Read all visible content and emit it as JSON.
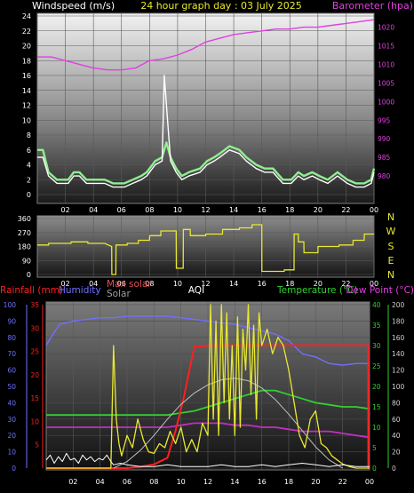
{
  "header": {
    "left_label": "Windspeed (m/s)",
    "center_label": "24 hour graph day : 03 July 2025",
    "right_label": "Barometer (hpa)"
  },
  "colors": {
    "wind": "#ffffff",
    "gust": "#90ee90",
    "barometer": "#e040e0",
    "direction": "#e8e830",
    "rainfall": "#ff2020",
    "humidity": "#7070ff",
    "temperature": "#30d030",
    "dewpoint": "#c030c0",
    "solar": "#e8e830",
    "maxsolar": "#c0c0c0",
    "aqi": "#ffffff"
  },
  "panel3_labels": {
    "rainfall": "Rainfall (mm)",
    "humidity": "Humidity",
    "max_solar": "Max solar",
    "solar": "Solar",
    "aqi": "AQI",
    "temperature": "Temperature (°C)",
    "dewpoint": "Dew Point (°C)"
  },
  "compass": [
    "N",
    "W",
    "S",
    "E",
    "N"
  ],
  "chart_data": [
    {
      "type": "line",
      "panel": "wind-barometer",
      "x_ticks": [
        "02",
        "04",
        "06",
        "08",
        "10",
        "12",
        "14",
        "16",
        "18",
        "20",
        "22",
        "00"
      ],
      "y_left": {
        "label": "Windspeed (m/s)",
        "range": [
          0,
          24
        ],
        "ticks": [
          0,
          2,
          4,
          6,
          8,
          10,
          12,
          14,
          16,
          18,
          20,
          22,
          24
        ]
      },
      "y_right": {
        "label": "Barometer (hpa)",
        "range": [
          975,
          1023
        ],
        "ticks": [
          980,
          985,
          990,
          995,
          1000,
          1005,
          1010,
          1015,
          1020
        ]
      },
      "grid": true,
      "series": [
        {
          "key": "barometer",
          "axis": "right",
          "x": [
            0,
            1,
            2,
            3,
            4,
            5,
            6,
            7,
            8,
            9,
            10,
            11,
            12,
            13,
            14,
            15,
            16,
            17,
            18,
            19,
            20,
            21,
            22,
            23,
            24
          ],
          "y": [
            1012,
            1012,
            1011,
            1010,
            1009,
            1008.5,
            1008.5,
            1009,
            1011,
            1011.5,
            1012.5,
            1014,
            1016,
            1017,
            1018,
            1018.5,
            1019,
            1019.5,
            1019.5,
            1020,
            1020,
            1020.5,
            1021,
            1021.5,
            1022
          ]
        },
        {
          "key": "gust",
          "axis": "left",
          "x": [
            0,
            0.4,
            0.8,
            1.4,
            2.2,
            2.6,
            3.0,
            3.5,
            4.3,
            4.8,
            5.4,
            6.2,
            6.8,
            7.4,
            7.8,
            8.4,
            8.9,
            9.2,
            9.5,
            9.9,
            10.3,
            10.8,
            11.6,
            12.1,
            12.6,
            13.0,
            13.7,
            14.4,
            14.9,
            15.6,
            16.2,
            16.8,
            17.5,
            18.1,
            18.6,
            19.0,
            19.6,
            20.1,
            20.7,
            21.4,
            22.1,
            22.7,
            23.3,
            23.8,
            24
          ],
          "y": [
            6,
            6,
            3,
            2,
            2,
            3,
            3,
            2,
            2,
            2,
            1.5,
            1.5,
            2,
            2.5,
            3,
            4.5,
            5,
            7,
            5,
            3.5,
            2.5,
            3,
            3.5,
            4.5,
            5,
            5.5,
            6.5,
            6,
            5,
            4,
            3.5,
            3.5,
            2,
            2,
            3,
            2.5,
            3,
            2.5,
            2,
            3,
            2,
            1.5,
            1.5,
            2,
            3.5
          ]
        },
        {
          "key": "wind",
          "axis": "left",
          "x": [
            0,
            0.4,
            0.8,
            1.4,
            2.2,
            2.6,
            3.0,
            3.5,
            4.3,
            4.8,
            5.4,
            6.2,
            6.8,
            7.4,
            7.8,
            8.4,
            8.9,
            9.05,
            9.5,
            9.9,
            10.3,
            10.8,
            11.6,
            12.1,
            12.6,
            13.0,
            13.7,
            14.4,
            14.9,
            15.6,
            16.2,
            16.8,
            17.5,
            18.1,
            18.6,
            19.0,
            19.6,
            20.1,
            20.7,
            21.4,
            22.1,
            22.7,
            23.3,
            23.8,
            24
          ],
          "y": [
            5,
            5,
            2.5,
            1.5,
            1.5,
            2.5,
            2.5,
            1.5,
            1.5,
            1.5,
            1,
            1,
            1.5,
            2,
            2.5,
            4,
            4.5,
            16,
            4.5,
            3,
            2,
            2.5,
            3,
            4,
            4.5,
            5,
            6,
            5.5,
            4.5,
            3.5,
            3,
            3,
            1.5,
            1.5,
            2.5,
            2,
            2.5,
            2,
            1.5,
            2.5,
            1.5,
            1,
            1,
            1.5,
            3
          ]
        }
      ]
    },
    {
      "type": "line",
      "panel": "wind-direction",
      "x_ticks": [
        "02",
        "04",
        "06",
        "08",
        "10",
        "12",
        "14",
        "16",
        "18",
        "20",
        "22",
        "00"
      ],
      "y_left": {
        "range": [
          0,
          360
        ],
        "ticks": [
          0,
          90,
          180,
          270,
          360
        ]
      },
      "grid": true,
      "series": [
        {
          "key": "direction",
          "x": [
            0,
            0.8,
            0.81,
            2.4,
            2.41,
            3.6,
            3.61,
            4.8,
            5.3,
            5.31,
            5.6,
            5.61,
            6.4,
            6.41,
            7.2,
            7.21,
            8,
            8.01,
            8.8,
            8.81,
            9.9,
            9.91,
            10.4,
            10.41,
            10.9,
            10.91,
            12,
            12.01,
            13.2,
            13.21,
            14.4,
            14.41,
            15.3,
            15.31,
            16,
            16.01,
            17.6,
            17.61,
            18.3,
            18.31,
            18.6,
            18.61,
            19,
            19.01,
            20,
            20.01,
            21.5,
            21.51,
            22.5,
            22.51,
            23.3,
            23.31,
            24
          ],
          "y": [
            190,
            190,
            200,
            200,
            210,
            210,
            200,
            200,
            180,
            0,
            0,
            190,
            190,
            200,
            200,
            220,
            220,
            250,
            250,
            280,
            280,
            40,
            40,
            290,
            290,
            250,
            250,
            260,
            260,
            290,
            290,
            300,
            300,
            320,
            320,
            20,
            20,
            30,
            30,
            260,
            260,
            210,
            210,
            140,
            140,
            180,
            180,
            190,
            190,
            220,
            220,
            260,
            260
          ]
        }
      ]
    },
    {
      "type": "line",
      "panel": "rain-humidity-temp-solar",
      "x_ticks": [
        "02",
        "04",
        "06",
        "08",
        "10",
        "12",
        "14",
        "16",
        "18",
        "20",
        "22",
        "00"
      ],
      "y_left": {
        "label": "Humidity",
        "range": [
          0,
          100
        ],
        "ticks": [
          0,
          10,
          20,
          30,
          40,
          50,
          60,
          70,
          80,
          90,
          100
        ]
      },
      "y_rain": {
        "label": "Rainfall (mm)",
        "range": [
          0,
          35
        ],
        "ticks": [
          5,
          10,
          15,
          20,
          25,
          30,
          35
        ]
      },
      "y_temp": {
        "label": "Temperature (°C)",
        "range": [
          0,
          40
        ],
        "ticks": [
          0,
          5,
          10,
          15,
          20,
          25,
          30,
          35,
          40
        ]
      },
      "y_solar": {
        "label": "Solar",
        "range": [
          0,
          200
        ],
        "ticks": [
          0,
          20,
          40,
          60,
          80,
          100,
          120,
          140,
          160,
          180,
          200
        ]
      },
      "grid": true,
      "series": [
        {
          "key": "humidity",
          "axis": "humidity",
          "x": [
            0,
            0.5,
            1,
            2,
            3,
            4,
            5,
            6,
            7,
            8,
            9,
            10,
            11,
            12,
            13,
            14,
            15,
            16,
            17,
            18,
            19,
            20,
            21,
            22,
            23,
            24
          ],
          "y": [
            75,
            82,
            88,
            90,
            91,
            92,
            92,
            93,
            93,
            93,
            93,
            92,
            91,
            90,
            89,
            88,
            86,
            84,
            82,
            78,
            70,
            68,
            64,
            63,
            64,
            64
          ]
        },
        {
          "key": "temperature",
          "axis": "temp",
          "x": [
            0,
            1,
            2,
            3,
            4,
            5,
            6,
            7,
            8,
            9,
            10,
            11,
            12,
            13,
            14,
            15,
            16,
            17,
            18,
            19,
            20,
            21,
            22,
            23,
            24
          ],
          "y": [
            13,
            13,
            13,
            13,
            13,
            13,
            13,
            13,
            13,
            13,
            13.5,
            14,
            15,
            16,
            17,
            18,
            19,
            19,
            18,
            17,
            16,
            15.5,
            15,
            15,
            14.5
          ]
        },
        {
          "key": "dewpoint",
          "axis": "temp",
          "x": [
            0,
            1,
            2,
            3,
            4,
            5,
            6,
            7,
            8,
            9,
            10,
            11,
            12,
            13,
            14,
            15,
            16,
            17,
            18,
            19,
            20,
            21,
            22,
            23,
            24
          ],
          "y": [
            10,
            10,
            10,
            10,
            10,
            10,
            10,
            10,
            10,
            10,
            10.5,
            11,
            11,
            11,
            10.5,
            10.5,
            10,
            10,
            9.5,
            9,
            9,
            9,
            8.5,
            8,
            7.5
          ]
        },
        {
          "key": "rainfall",
          "axis": "rain",
          "x": [
            0,
            6,
            7,
            8,
            9,
            9.6,
            10.2,
            11,
            12,
            13,
            14,
            15,
            16,
            17,
            18,
            19,
            20,
            21,
            22,
            23,
            23.9,
            23.91,
            24
          ],
          "y": [
            0,
            0,
            0.3,
            0.8,
            2.2,
            8,
            15,
            26,
            26.2,
            26.3,
            26.3,
            26.3,
            26.3,
            26.3,
            26.3,
            26.3,
            26.3,
            26.3,
            26.3,
            26.3,
            26.3,
            0,
            0
          ]
        },
        {
          "key": "maxsolar",
          "axis": "solar",
          "x": [
            5,
            6,
            7,
            8,
            9,
            10,
            11,
            12,
            13,
            14,
            15,
            16,
            17,
            18,
            19,
            20,
            21,
            22
          ],
          "y": [
            0,
            8,
            22,
            40,
            60,
            78,
            92,
            102,
            108,
            110,
            107,
            98,
            84,
            66,
            46,
            26,
            10,
            0
          ]
        },
        {
          "key": "solar",
          "axis": "solar",
          "x": [
            0,
            4.8,
            5,
            5.2,
            5.4,
            5.6,
            6,
            6.4,
            6.8,
            7.2,
            7.6,
            8,
            8.4,
            8.8,
            9.2,
            9.6,
            10,
            10.4,
            10.8,
            11.2,
            11.6,
            12,
            12.2,
            12.4,
            12.6,
            12.8,
            13,
            13.2,
            13.4,
            13.6,
            13.8,
            14,
            14.2,
            14.4,
            14.6,
            14.8,
            15,
            15.2,
            15.4,
            15.6,
            15.8,
            16,
            16.4,
            16.8,
            17.2,
            17.6,
            18,
            18.4,
            18.8,
            19.2,
            19.6,
            20,
            20.4,
            20.8,
            21.2,
            21.6,
            22,
            22.5,
            23,
            24
          ],
          "y": [
            0,
            0,
            150,
            60,
            30,
            15,
            40,
            25,
            60,
            35,
            20,
            18,
            30,
            25,
            45,
            30,
            50,
            20,
            35,
            20,
            55,
            40,
            200,
            60,
            180,
            40,
            200,
            80,
            190,
            60,
            150,
            40,
            185,
            50,
            170,
            120,
            200,
            90,
            175,
            60,
            190,
            150,
            170,
            140,
            160,
            150,
            120,
            80,
            40,
            25,
            60,
            70,
            30,
            25,
            15,
            10,
            5,
            2,
            0,
            0
          ]
        },
        {
          "key": "aqi",
          "axis": "humidity",
          "x": [
            0,
            0.3,
            0.6,
            0.9,
            1.2,
            1.5,
            1.8,
            2.1,
            2.4,
            2.7,
            3,
            3.3,
            3.6,
            3.9,
            4.2,
            4.5,
            4.8,
            5,
            5.5,
            6,
            7,
            8,
            9,
            10,
            11,
            12,
            13,
            14,
            15,
            16,
            17,
            18,
            19,
            20,
            21,
            22,
            23,
            24
          ],
          "y": [
            5,
            8,
            3,
            7,
            4,
            9,
            5,
            6,
            3,
            8,
            5,
            7,
            4,
            6,
            5,
            8,
            4,
            2,
            3,
            2,
            1,
            1,
            2,
            1,
            1,
            1,
            2,
            1,
            1,
            2,
            1,
            2,
            3,
            2,
            1,
            2,
            1,
            1
          ]
        }
      ]
    }
  ]
}
